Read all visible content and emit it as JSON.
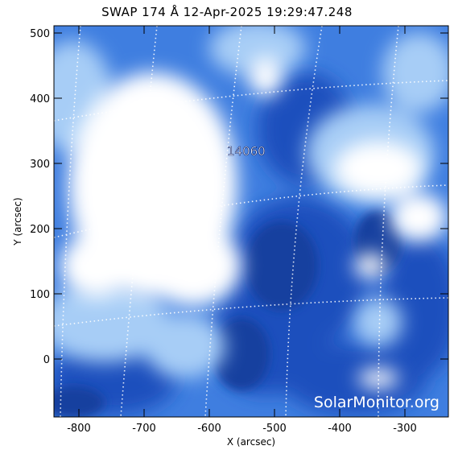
{
  "title": "SWAP 174 Å 12-Apr-2025 19:29:47.248",
  "x_axis": {
    "label": "X (arcsec)",
    "ticks": [
      "-800",
      "-700",
      "-600",
      "-500",
      "-400",
      "-300"
    ]
  },
  "y_axis": {
    "label": "Y (arcsec)",
    "ticks": [
      "0",
      "100",
      "200",
      "300",
      "400",
      "500"
    ]
  },
  "active_region": "14060",
  "watermark": "SolarMonitor.org",
  "colors": {
    "background": "#ffffff",
    "plasma_dark": "#1a46b0",
    "plasma_mid": "#3f7ee0",
    "plasma_light": "#a7cdf6",
    "plasma_bright": "#ffffff",
    "grid": "#ffffff"
  }
}
